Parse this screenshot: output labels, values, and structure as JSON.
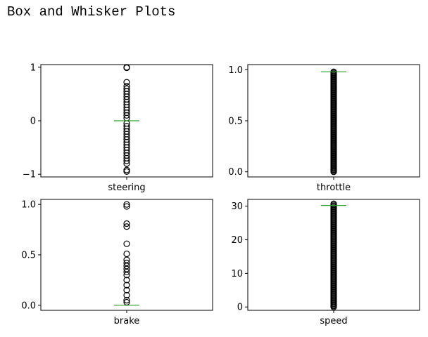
{
  "page": {
    "title": "Box and Whisker Plots"
  },
  "chart_data": [
    {
      "type": "box",
      "categories": [
        "steering"
      ],
      "ylim": [
        -1.05,
        1.05
      ],
      "yticks": [
        -1,
        0,
        1
      ],
      "ytick_labels": [
        "−1",
        "0",
        "1"
      ],
      "median": 0.0,
      "q1": 0.0,
      "q3": 0.0,
      "whisker_low": 0.0,
      "whisker_high": 0.0,
      "outliers": [
        1.0,
        0.99,
        0.72,
        0.65,
        0.6,
        0.55,
        0.5,
        0.45,
        0.4,
        0.35,
        0.3,
        0.25,
        0.2,
        0.15,
        0.1,
        0.05,
        -0.05,
        -0.1,
        -0.15,
        -0.2,
        -0.25,
        -0.3,
        -0.35,
        -0.4,
        -0.45,
        -0.5,
        -0.55,
        -0.6,
        -0.65,
        -0.7,
        -0.75,
        -0.8,
        -0.92,
        -0.95
      ],
      "median_color": "#2ca02c"
    },
    {
      "type": "box",
      "categories": [
        "throttle"
      ],
      "ylim": [
        -0.05,
        1.05
      ],
      "yticks": [
        0.0,
        0.5,
        1.0
      ],
      "ytick_labels": [
        "0.0",
        "0.5",
        "1.0"
      ],
      "median": 0.98,
      "q1": 0.98,
      "q3": 0.98,
      "whisker_low": 0.98,
      "whisker_high": 0.98,
      "outlier_band": [
        0.0,
        0.98
      ],
      "median_color": "#2ca02c"
    },
    {
      "type": "box",
      "categories": [
        "brake"
      ],
      "ylim": [
        -0.05,
        1.05
      ],
      "yticks": [
        0.0,
        0.5,
        1.0
      ],
      "ytick_labels": [
        "0.0",
        "0.5",
        "1.0"
      ],
      "median": 0.0,
      "q1": 0.0,
      "q3": 0.0,
      "whisker_low": 0.0,
      "whisker_high": 0.0,
      "outliers": [
        1.0,
        0.98,
        0.81,
        0.78,
        0.61,
        0.51,
        0.45,
        0.42,
        0.39,
        0.36,
        0.33,
        0.3,
        0.25,
        0.2,
        0.15,
        0.1,
        0.05,
        0.03
      ],
      "median_color": "#2ca02c"
    },
    {
      "type": "box",
      "categories": [
        "speed"
      ],
      "ylim": [
        -1,
        32
      ],
      "yticks": [
        0,
        10,
        20,
        30
      ],
      "ytick_labels": [
        "0",
        "10",
        "20",
        "30"
      ],
      "median": 30.2,
      "q1": 30.2,
      "q3": 30.2,
      "whisker_low": 30.2,
      "whisker_high": 30.2,
      "outlier_band": [
        0.0,
        30.8
      ],
      "median_color": "#2ca02c"
    }
  ]
}
